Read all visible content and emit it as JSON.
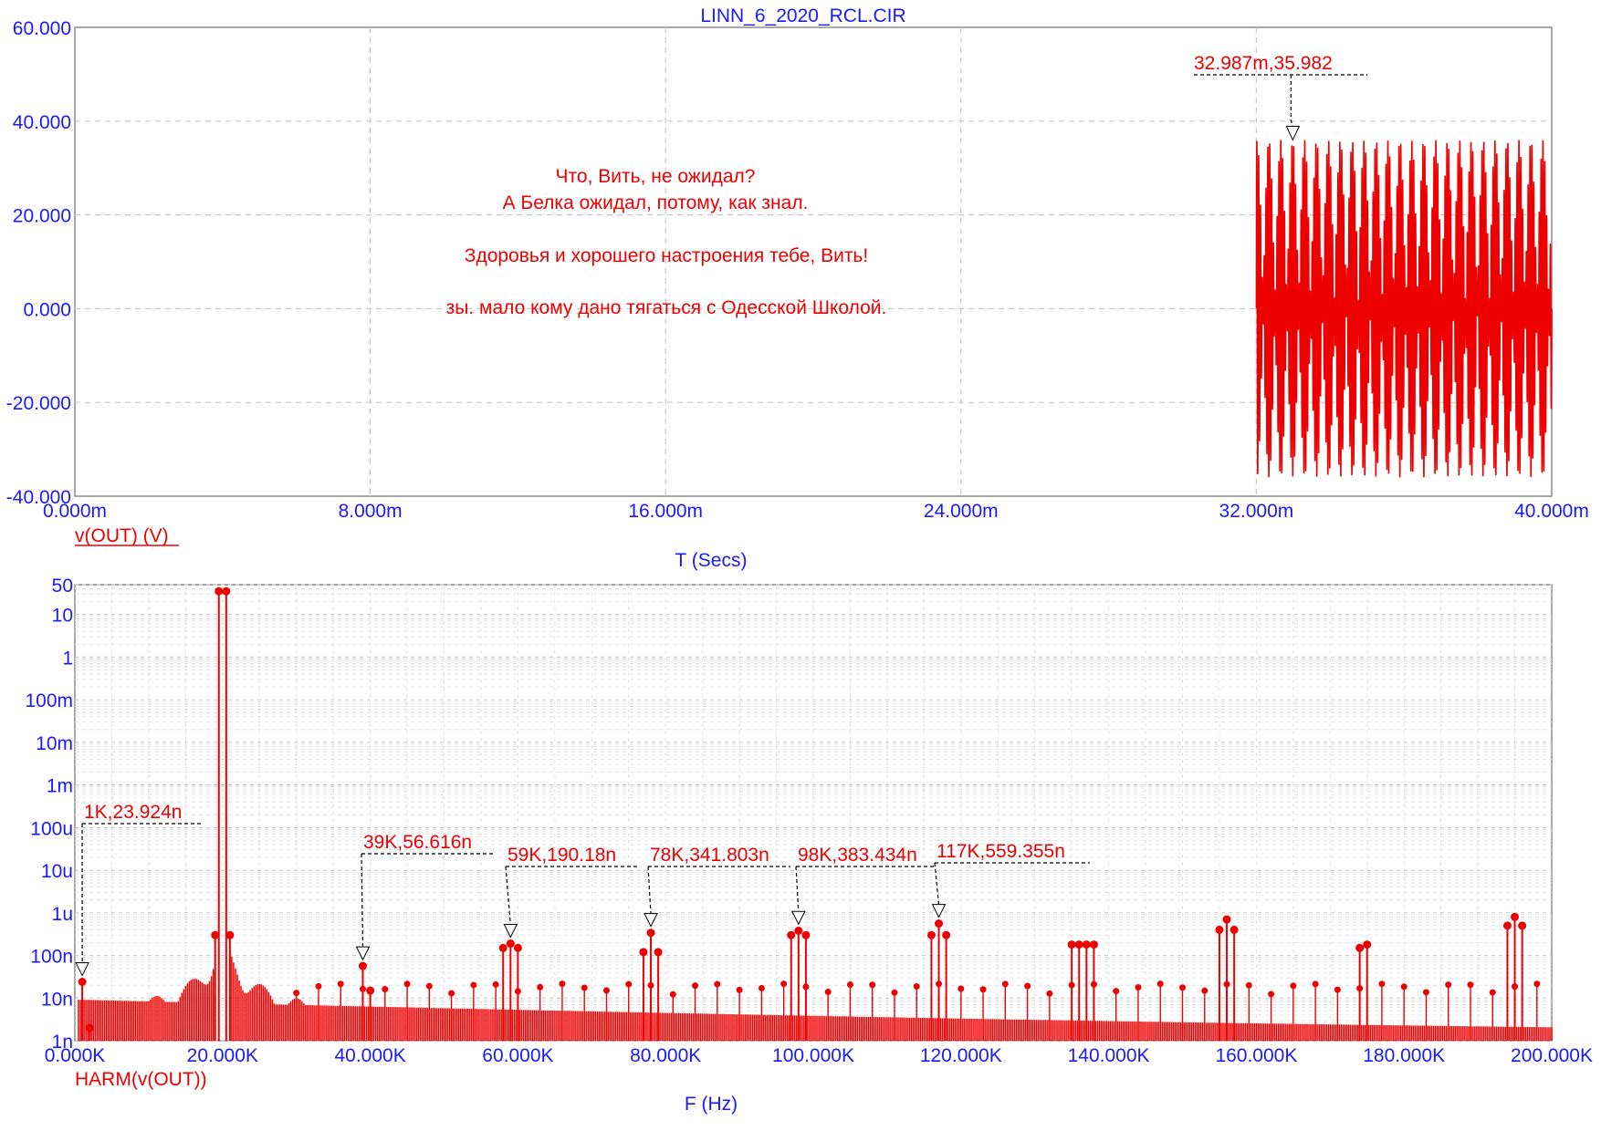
{
  "top_title": "LINN_6_2020_RCL.CIR",
  "message_lines": [
    "Что, Вить, не ожидал?",
    "А Белка ожидал, потому, как знал.",
    "",
    "Здоровья и хорошего настроения тебе, Вить!",
    "",
    "зы. мало кому дано тягаться с Одесской Школой."
  ],
  "colors": {
    "trace": "#ee0000",
    "axis_text": "#1a1aff",
    "grid": "#c8c8c8",
    "frame": "#8c8c8c"
  },
  "chart_data": [
    {
      "type": "line",
      "title": "LINN_6_2020_RCL.CIR",
      "xlabel": "T (Secs)",
      "ylabel": "",
      "series": [
        {
          "name": "v(OUT) (V)",
          "description_of_shape": "empty until 32.000m, then sinusoid at ~20 kHz with ~3.1 kHz beat envelope, amplitude ~36"
        }
      ],
      "x_ticks": [
        "0.000m",
        "8.000m",
        "16.000m",
        "24.000m",
        "32.000m",
        "40.000m"
      ],
      "y_ticks": [
        "60.000",
        "40.000",
        "20.000",
        "0.000",
        "-20.000",
        "-40.000"
      ],
      "xlim": [
        0,
        0.04
      ],
      "ylim": [
        -40,
        60
      ],
      "signal_start": 0.032,
      "amplitude": 36,
      "grid": true,
      "annotations": [
        {
          "label": "32.987m,35.982",
          "x": 0.032987,
          "y": 35.982
        }
      ]
    },
    {
      "type": "line",
      "title": "",
      "xlabel": "F (Hz)",
      "ylabel": "",
      "log_y": true,
      "series": [
        {
          "name": "HARM(v(OUT))"
        }
      ],
      "x_ticks": [
        "0.000K",
        "20.000K",
        "40.000K",
        "60.000K",
        "80.000K",
        "100.000K",
        "120.000K",
        "140.000K",
        "160.000K",
        "180.000K",
        "200.000K"
      ],
      "y_ticks": [
        "50",
        "10",
        "1",
        "100m",
        "10m",
        "1m",
        "100u",
        "10u",
        "1u",
        "100n",
        "10n",
        "1n"
      ],
      "xlim": [
        0,
        200000
      ],
      "ylim": [
        1e-09,
        50
      ],
      "grid": true,
      "peaks": [
        {
          "f": 1000,
          "v": 2.4e-08
        },
        {
          "f": 2000,
          "v": 2e-09
        },
        {
          "f": 19000,
          "v": 3e-07
        },
        {
          "f": 19500,
          "v": 35
        },
        {
          "f": 20500,
          "v": 35
        },
        {
          "f": 21000,
          "v": 3e-07
        },
        {
          "f": 39000,
          "v": 5.66e-08
        },
        {
          "f": 40000,
          "v": 1.5e-08
        },
        {
          "f": 58000,
          "v": 1.5e-07
        },
        {
          "f": 59000,
          "v": 1.9e-07
        },
        {
          "f": 60000,
          "v": 1.5e-07
        },
        {
          "f": 77000,
          "v": 1.2e-07
        },
        {
          "f": 78000,
          "v": 3.4e-07
        },
        {
          "f": 79000,
          "v": 1.2e-07
        },
        {
          "f": 97000,
          "v": 3e-07
        },
        {
          "f": 98000,
          "v": 3.8e-07
        },
        {
          "f": 99000,
          "v": 3e-07
        },
        {
          "f": 116000,
          "v": 3e-07
        },
        {
          "f": 117000,
          "v": 5.6e-07
        },
        {
          "f": 118000,
          "v": 3e-07
        },
        {
          "f": 135000,
          "v": 1.8e-07
        },
        {
          "f": 136000,
          "v": 1.8e-07
        },
        {
          "f": 137000,
          "v": 1.8e-07
        },
        {
          "f": 138000,
          "v": 1.8e-07
        },
        {
          "f": 155000,
          "v": 4e-07
        },
        {
          "f": 156000,
          "v": 7e-07
        },
        {
          "f": 157000,
          "v": 4e-07
        },
        {
          "f": 174000,
          "v": 1.5e-07
        },
        {
          "f": 175000,
          "v": 1.8e-07
        },
        {
          "f": 194000,
          "v": 5e-07
        },
        {
          "f": 195000,
          "v": 8e-07
        },
        {
          "f": 196000,
          "v": 5e-07
        }
      ],
      "annotations": [
        {
          "label": "1K,23.924n",
          "f": 1000,
          "v": 2.3924e-08
        },
        {
          "label": "39K,56.616n",
          "f": 39000,
          "v": 5.6616e-08
        },
        {
          "label": "59K,190.18n",
          "f": 59000,
          "v": 1.9018e-07
        },
        {
          "label": "78K,341.803n",
          "f": 78000,
          "v": 3.41803e-07
        },
        {
          "label": "98K,383.434n",
          "f": 98000,
          "v": 3.83434e-07
        },
        {
          "label": "117K,559.355n",
          "f": 117000,
          "v": 5.59355e-07
        }
      ]
    }
  ]
}
